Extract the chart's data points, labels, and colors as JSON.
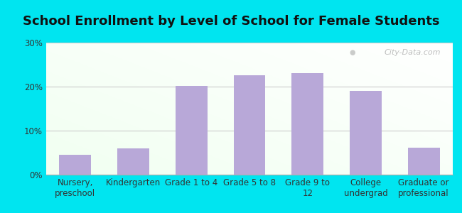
{
  "title": "School Enrollment by Level of School for Female Students",
  "categories": [
    "Nursery,\npreschool",
    "Kindergarten",
    "Grade 1 to 4",
    "Grade 5 to 8",
    "Grade 9 to\n12",
    "College\nundergrad",
    "Graduate or\nprofessional"
  ],
  "values": [
    4.5,
    6.0,
    20.2,
    22.6,
    23.1,
    19.0,
    6.2
  ],
  "bar_color": "#b8a8d8",
  "ylim": [
    0,
    30
  ],
  "yticks": [
    0,
    10,
    20,
    30
  ],
  "ytick_labels": [
    "0%",
    "10%",
    "20%",
    "30%"
  ],
  "title_fontsize": 13,
  "tick_fontsize": 8.5,
  "outer_bg_color": "#00e5f0",
  "watermark": "City-Data.com",
  "grid_color": "#cccccc"
}
